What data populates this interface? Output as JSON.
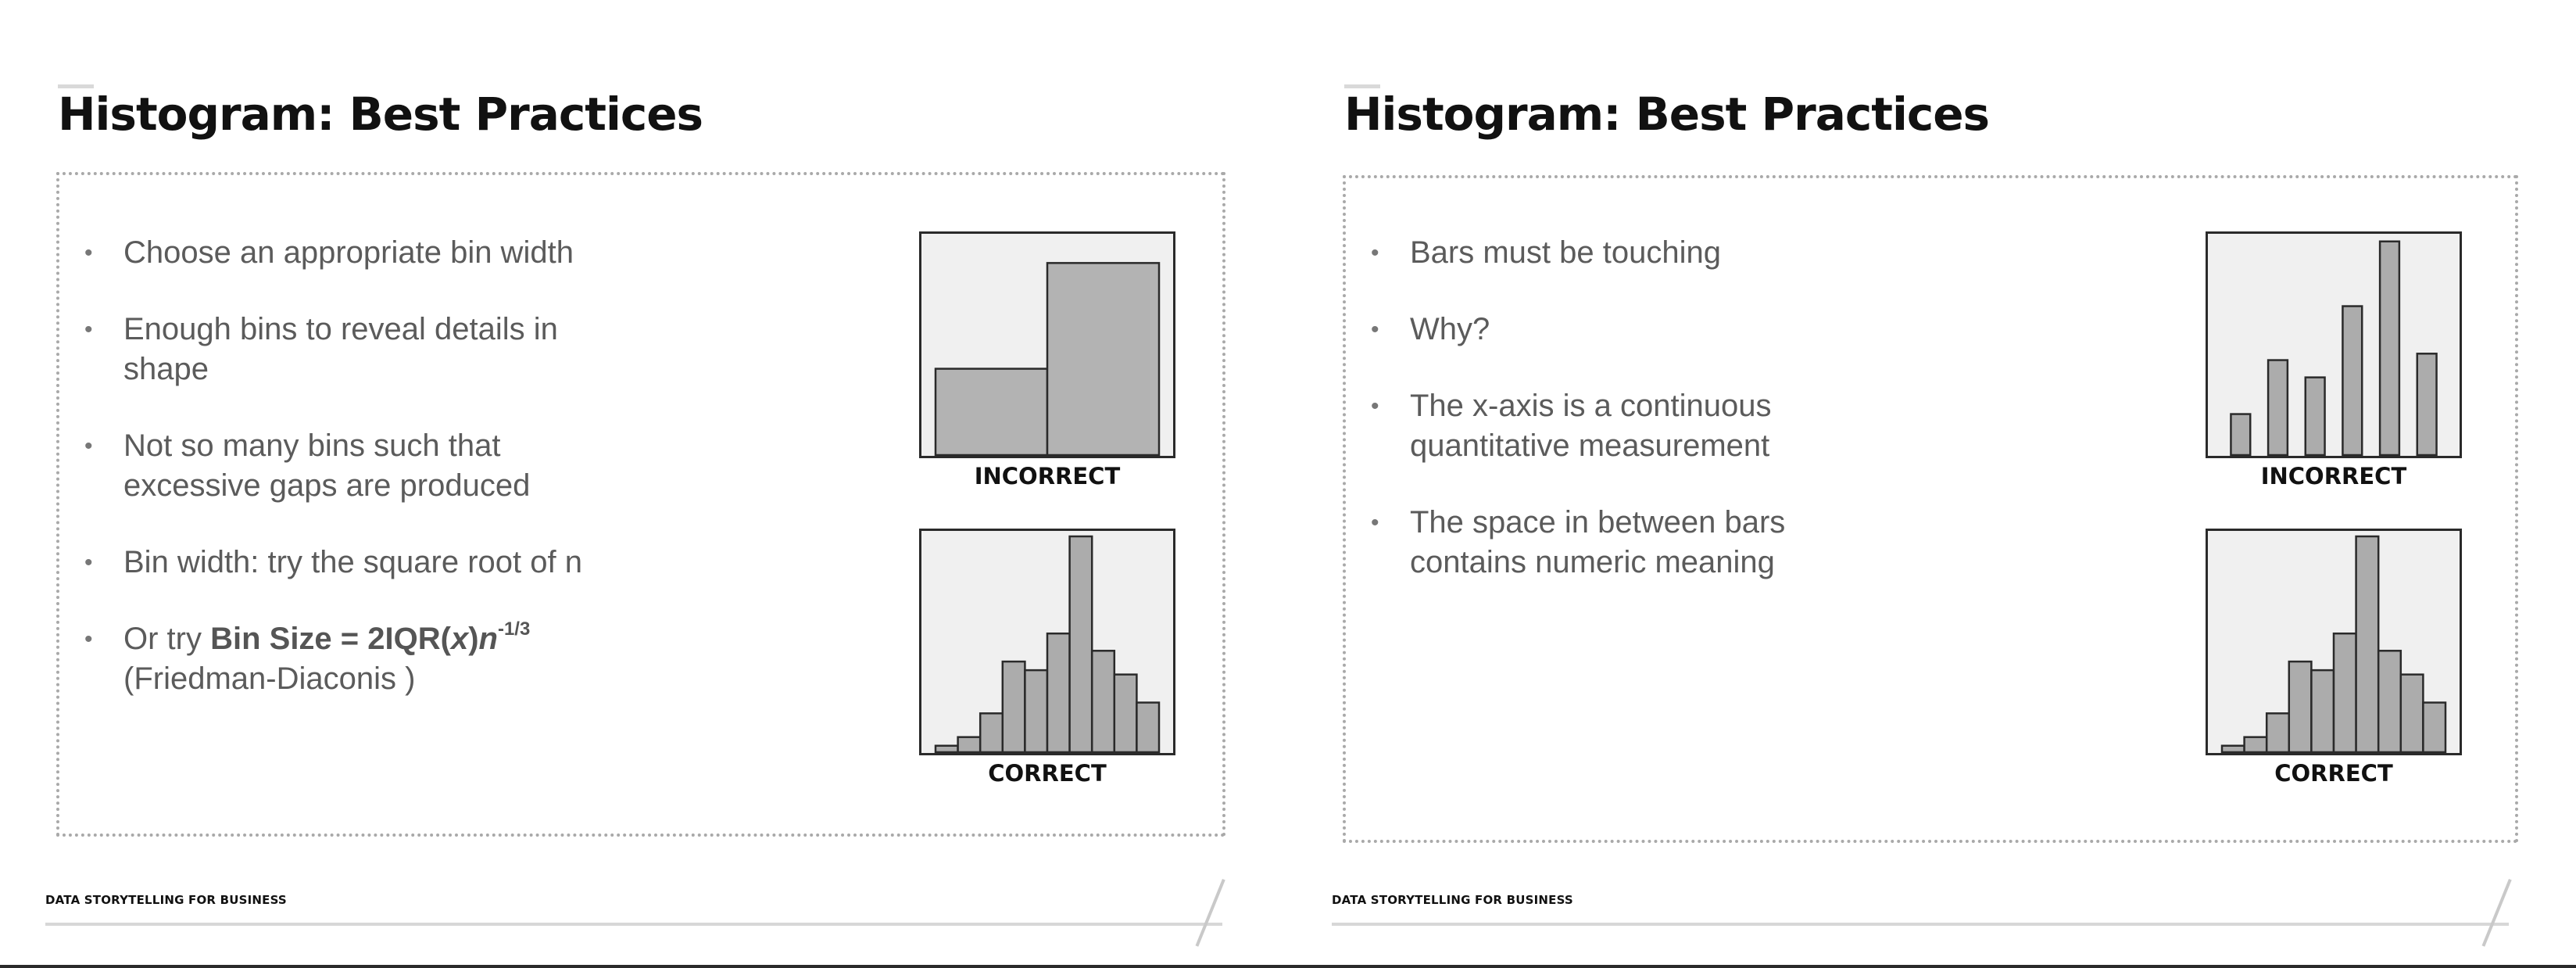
{
  "slides": [
    {
      "title": "Histogram: Best Practices",
      "bullets": [
        {
          "text": "Choose an appropriate bin width"
        },
        {
          "text": "Enough bins to reveal details in shape"
        },
        {
          "text": "Not so many bins such that excessive gaps are produced"
        },
        {
          "text": "Bin width: try the square root of n"
        },
        {
          "prefix": "Or try ",
          "formula_main": "Bin Size = 2IQR(",
          "formula_x": "x",
          "formula_close": ")",
          "formula_n": "n",
          "formula_exp": "-1/3",
          "suffix": "(Friedman-Diaconis )"
        }
      ],
      "chart_top_label": "INCORRECT",
      "chart_bottom_label": "CORRECT",
      "footer": "DATA STORYTELLING FOR BUSINESS"
    },
    {
      "title": "Histogram: Best Practices",
      "bullets": [
        {
          "text": "Bars must be touching"
        },
        {
          "text": "Why?"
        },
        {
          "text": "The x-axis is a continuous quantitative measurement"
        },
        {
          "text": "The space in between bars contains numeric meaning"
        }
      ],
      "chart_top_label": "INCORRECT",
      "chart_bottom_label": "CORRECT",
      "footer": "DATA STORYTELLING FOR BUSINESS"
    }
  ],
  "chart_data": [
    {
      "type": "bar",
      "title": "",
      "label": "INCORRECT",
      "values": [
        40,
        89
      ],
      "bars_touching": true,
      "ylim": [
        0,
        100
      ],
      "color": "#b3b3b3"
    },
    {
      "type": "bar",
      "title": "",
      "label": "CORRECT",
      "values": [
        3,
        7,
        18,
        42,
        38,
        55,
        100,
        47,
        36,
        23
      ],
      "bars_touching": true,
      "ylim": [
        0,
        100
      ],
      "color": "#acacac"
    },
    {
      "type": "bar",
      "title": "",
      "label": "INCORRECT",
      "values": [
        19,
        44,
        36,
        69,
        99,
        47
      ],
      "bars_touching": false,
      "ylim": [
        0,
        100
      ],
      "color": "#acacac"
    },
    {
      "type": "bar",
      "title": "",
      "label": "CORRECT",
      "values": [
        3,
        7,
        18,
        42,
        38,
        55,
        100,
        47,
        36,
        23
      ],
      "bars_touching": true,
      "ylim": [
        0,
        100
      ],
      "color": "#acacac"
    }
  ]
}
